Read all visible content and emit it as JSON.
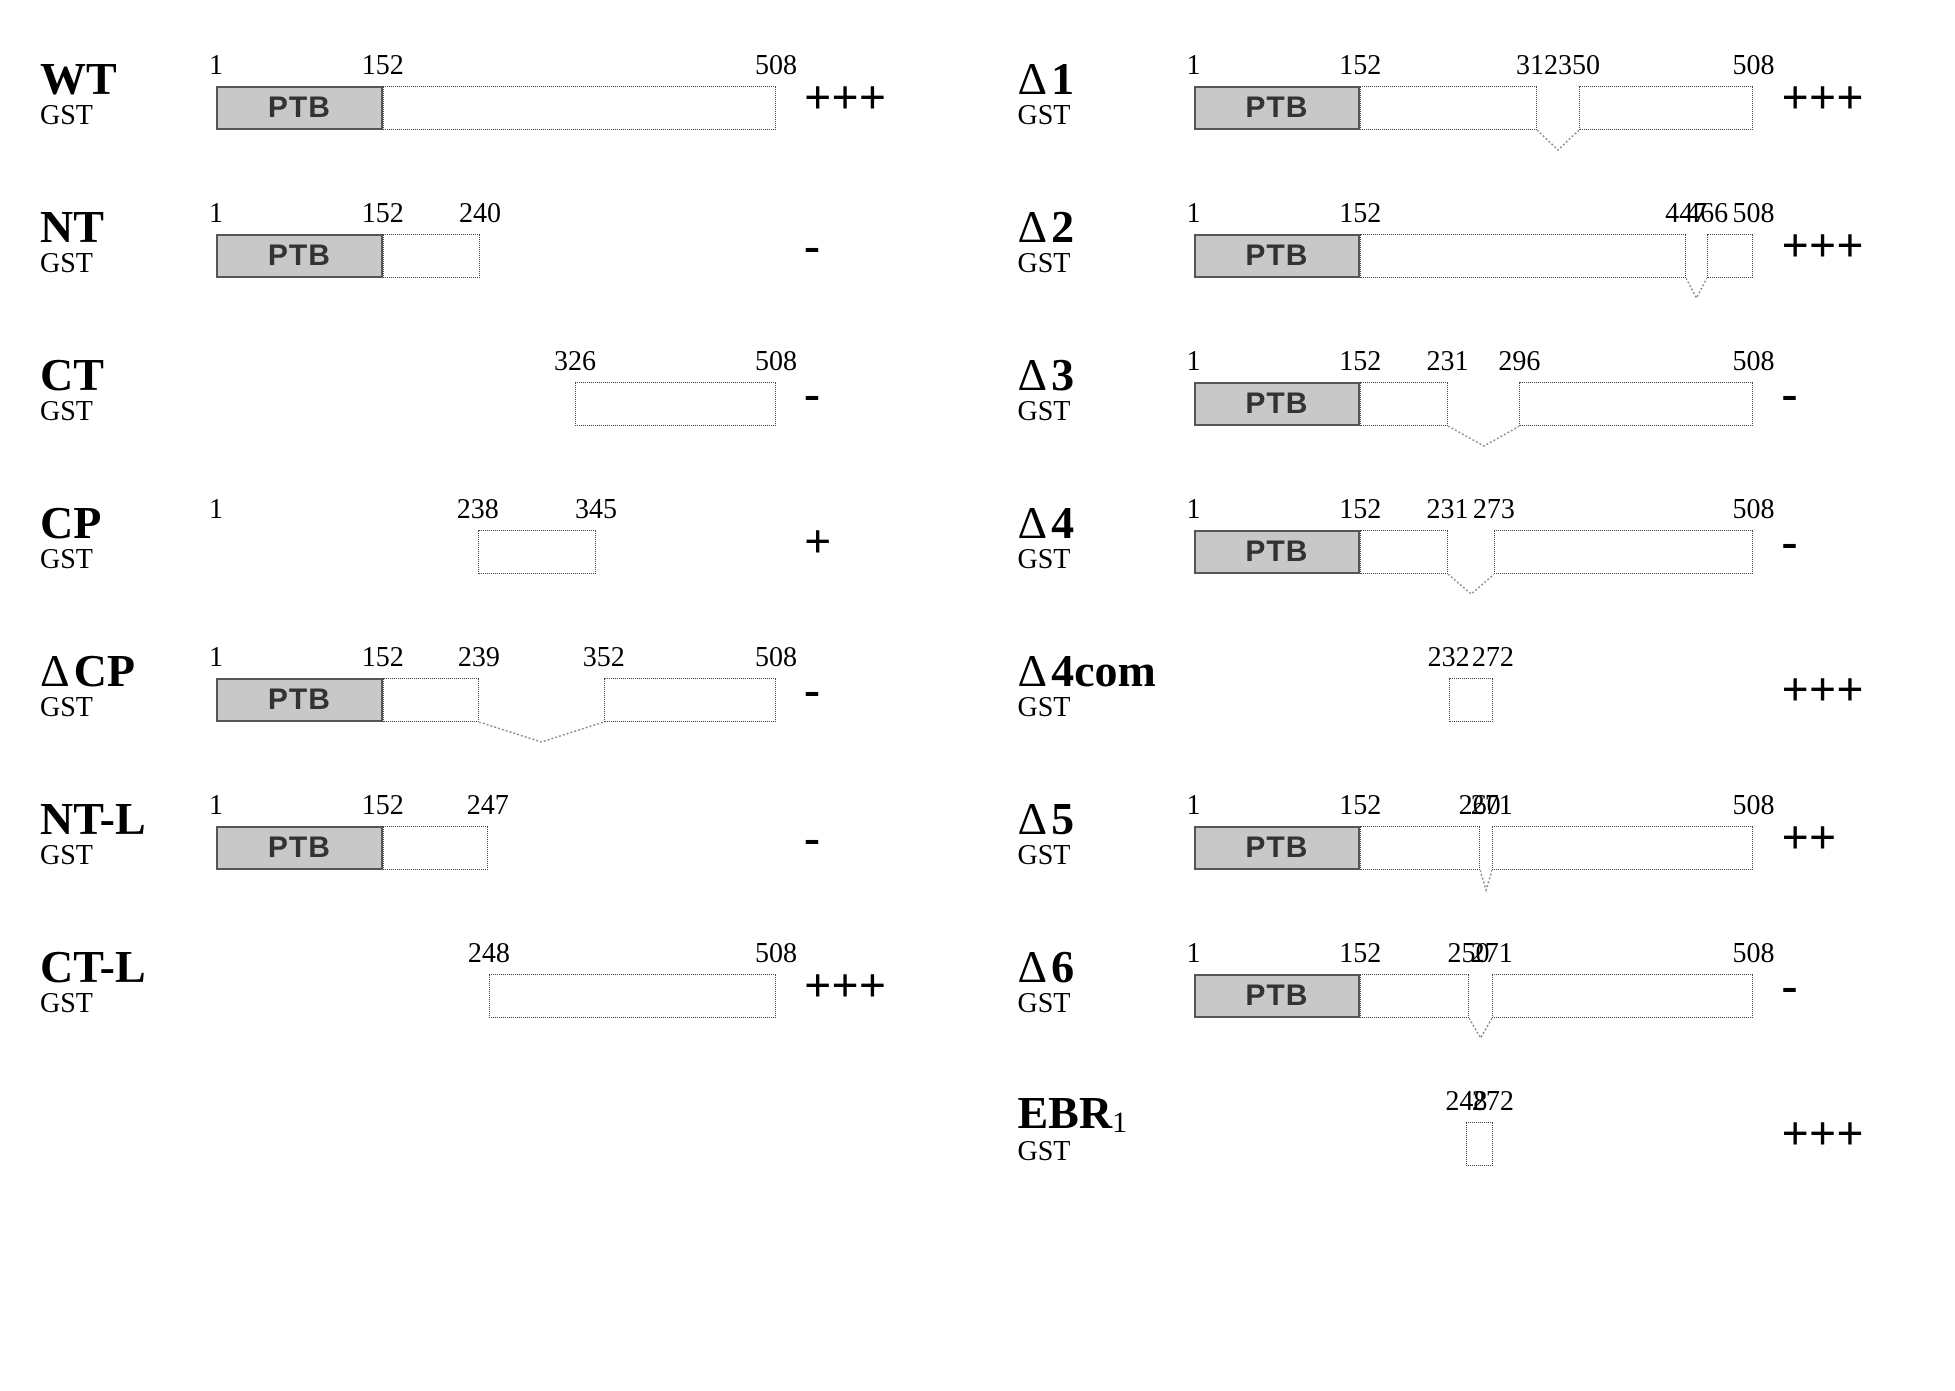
{
  "scale": {
    "min": 1,
    "max": 508,
    "trackWidth": 560
  },
  "ptbLabel": "PTB",
  "gstLabel": "GST",
  "colors": {
    "background": "#ffffff",
    "ptbFill": "#c8c8c8",
    "ptbBorder": "#555555",
    "segBorder": "#444444",
    "text": "#000000"
  },
  "leftColumn": [
    {
      "label": "WT",
      "score": "+++",
      "segments": [
        {
          "from": 1,
          "to": 152,
          "ptb": true
        },
        {
          "from": 152,
          "to": 508
        }
      ],
      "ticks": [
        1,
        152,
        508
      ]
    },
    {
      "label": "NT",
      "score": "-",
      "segments": [
        {
          "from": 1,
          "to": 152,
          "ptb": true
        },
        {
          "from": 152,
          "to": 240
        }
      ],
      "ticks": [
        1,
        152,
        240
      ]
    },
    {
      "label": "CT",
      "score": "-",
      "segments": [
        {
          "from": 326,
          "to": 508
        }
      ],
      "ticks": [
        326,
        508
      ]
    },
    {
      "label": "CP",
      "score": "+",
      "segments": [
        {
          "from": 238,
          "to": 345
        }
      ],
      "ticks": [
        238,
        345
      ],
      "tickAt1": true
    },
    {
      "label": "CP",
      "prefixDelta": true,
      "score": "-",
      "segments": [
        {
          "from": 1,
          "to": 152,
          "ptb": true
        },
        {
          "from": 152,
          "to": 239
        },
        {
          "from": 352,
          "to": 508
        }
      ],
      "ticks": [
        1,
        152,
        239,
        352,
        508
      ],
      "gap": {
        "from": 239,
        "to": 352
      }
    },
    {
      "label": "NT-L",
      "score": "-",
      "segments": [
        {
          "from": 1,
          "to": 152,
          "ptb": true
        },
        {
          "from": 152,
          "to": 247
        }
      ],
      "ticks": [
        1,
        152,
        247
      ]
    },
    {
      "label": "CT-L",
      "score": "+++",
      "segments": [
        {
          "from": 248,
          "to": 508
        }
      ],
      "ticks": [
        248,
        508
      ]
    }
  ],
  "rightColumn": [
    {
      "label": "1",
      "prefixDelta": true,
      "score": "+++",
      "segments": [
        {
          "from": 1,
          "to": 152,
          "ptb": true
        },
        {
          "from": 152,
          "to": 312
        },
        {
          "from": 350,
          "to": 508
        }
      ],
      "ticks": [
        1,
        152,
        312,
        350,
        508
      ],
      "gap": {
        "from": 312,
        "to": 350
      }
    },
    {
      "label": "2",
      "prefixDelta": true,
      "score": "+++",
      "segments": [
        {
          "from": 1,
          "to": 152,
          "ptb": true
        },
        {
          "from": 152,
          "to": 447
        },
        {
          "from": 466,
          "to": 508
        }
      ],
      "ticks": [
        1,
        152,
        447,
        466,
        508
      ],
      "gap": {
        "from": 447,
        "to": 466
      }
    },
    {
      "label": "3",
      "prefixDelta": true,
      "score": "-",
      "segments": [
        {
          "from": 1,
          "to": 152,
          "ptb": true
        },
        {
          "from": 152,
          "to": 231
        },
        {
          "from": 296,
          "to": 508
        }
      ],
      "ticks": [
        1,
        152,
        231,
        296,
        508
      ],
      "gap": {
        "from": 231,
        "to": 296
      }
    },
    {
      "label": "4",
      "prefixDelta": true,
      "score": "-",
      "segments": [
        {
          "from": 1,
          "to": 152,
          "ptb": true
        },
        {
          "from": 152,
          "to": 231
        },
        {
          "from": 273,
          "to": 508
        }
      ],
      "ticks": [
        1,
        152,
        231,
        273,
        508
      ],
      "gap": {
        "from": 231,
        "to": 273
      }
    },
    {
      "label": "4com",
      "prefixDelta": true,
      "score": "+++",
      "segments": [
        {
          "from": 232,
          "to": 272
        }
      ],
      "ticks": [
        232,
        272
      ],
      "narrow": true
    },
    {
      "label": "5",
      "prefixDelta": true,
      "score": "++",
      "segments": [
        {
          "from": 1,
          "to": 152,
          "ptb": true
        },
        {
          "from": 152,
          "to": 260
        },
        {
          "from": 271,
          "to": 508
        }
      ],
      "ticks": [
        1,
        152,
        260,
        271,
        508
      ],
      "gap": {
        "from": 260,
        "to": 271
      }
    },
    {
      "label": "6",
      "prefixDelta": true,
      "score": "-",
      "segments": [
        {
          "from": 1,
          "to": 152,
          "ptb": true
        },
        {
          "from": 152,
          "to": 250
        },
        {
          "from": 271,
          "to": 508
        }
      ],
      "ticks": [
        1,
        152,
        250,
        271,
        508
      ],
      "gap": {
        "from": 250,
        "to": 271
      }
    },
    {
      "label": "EBR",
      "labelSub": "1",
      "score": "+++",
      "segments": [
        {
          "from": 248,
          "to": 272
        }
      ],
      "ticks": [
        248,
        272
      ],
      "narrow": true
    }
  ]
}
